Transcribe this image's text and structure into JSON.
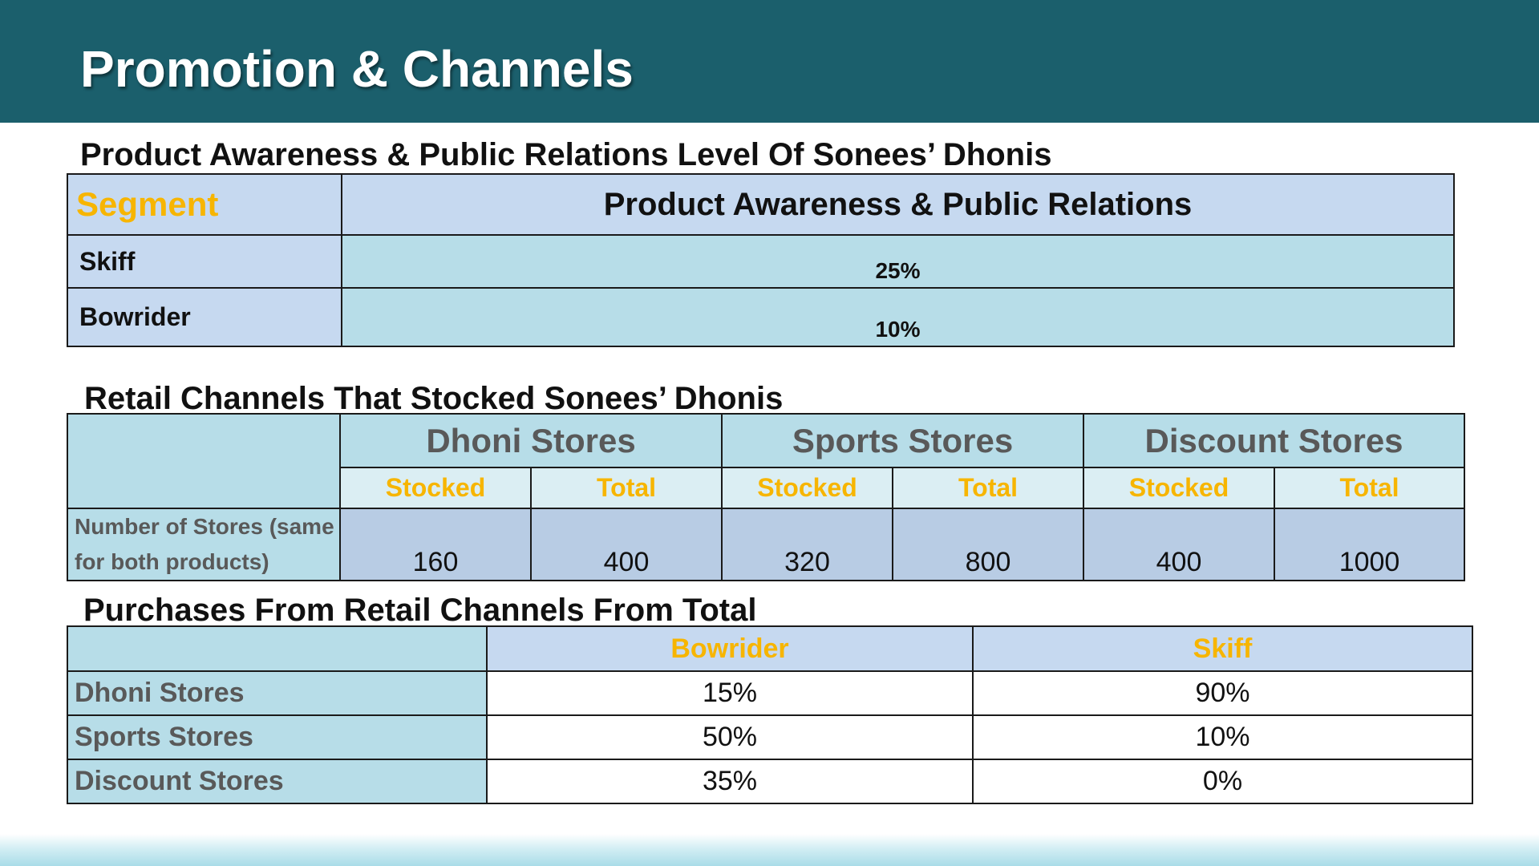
{
  "title": "Promotion & Channels",
  "awareness": {
    "heading": "Product Awareness & Public Relations Level Of Sonees’ Dhonis",
    "col_segment": "Segment",
    "col_value": "Product Awareness & Public Relations",
    "rows": [
      {
        "segment": "Skiff",
        "value": "25%"
      },
      {
        "segment": "Bowrider",
        "value": "10%"
      }
    ]
  },
  "retail": {
    "heading": "Retail Channels That Stocked Sonees’ Dhonis",
    "groups": [
      "Dhoni Stores",
      "Sports Stores",
      "Discount Stores"
    ],
    "subheaders": [
      "Stocked",
      "Total",
      "Stocked",
      "Total",
      "Stocked",
      "Total"
    ],
    "row_label": "Number of Stores (same for both products)",
    "values": [
      "160",
      "400",
      "320",
      "800",
      "400",
      "1000"
    ]
  },
  "purchases": {
    "heading": "Purchases From Retail Channels From Total",
    "columns": [
      "Bowrider",
      "Skiff"
    ],
    "rows": [
      {
        "channel": "Dhoni Stores",
        "bowrider": "15%",
        "skiff": "90%"
      },
      {
        "channel": "Sports Stores",
        "bowrider": "50%",
        "skiff": "10%"
      },
      {
        "channel": "Discount Stores",
        "bowrider": "35%",
        "skiff": "0%"
      }
    ]
  },
  "colors": {
    "title_bar": "#1b5f6c",
    "accent_gold": "#f7b500",
    "header_blue": "#c6d9f0",
    "cell_teal": "#b7dde8"
  }
}
